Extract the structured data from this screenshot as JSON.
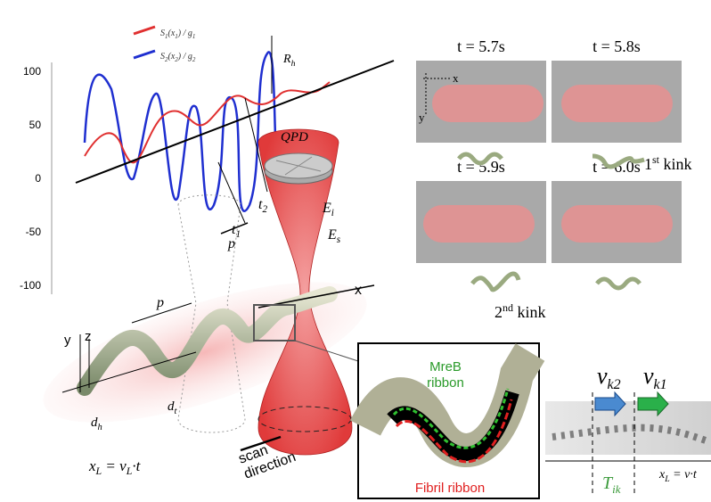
{
  "plot": {
    "legend": [
      {
        "parts": [
          "S",
          "1",
          "(x",
          "1",
          ") / g",
          "1"
        ]
      },
      {
        "parts": [
          "S",
          "2",
          "(x",
          "2",
          ") / g",
          "2"
        ]
      }
    ],
    "yticks": [
      100,
      50,
      0,
      -50,
      -100
    ],
    "rh": [
      "R",
      "h"
    ],
    "p": "p"
  },
  "setup": {
    "qpd": "QPD",
    "t1": [
      "t",
      "1"
    ],
    "t2": [
      "t",
      "2"
    ],
    "ei": [
      "E",
      "i"
    ],
    "es": [
      "E",
      "s"
    ],
    "x": "x",
    "y": "y",
    "z": "z",
    "p": "p",
    "dh": [
      "d",
      "h"
    ],
    "dt": [
      "d",
      "t"
    ],
    "xl": [
      "x",
      "L",
      " = v",
      "L",
      "·t"
    ],
    "scan": [
      "scan",
      "direction"
    ]
  },
  "frames": [
    {
      "title": "t = 5.7s"
    },
    {
      "title": "t = 5.8s"
    },
    {
      "title": "t = 5.9s"
    },
    {
      "title": "t = 6.0s"
    }
  ],
  "frame_axes": [
    "x",
    "y"
  ],
  "kinks": [
    [
      "1",
      "st",
      " kink"
    ],
    [
      "2",
      "nd",
      " kink"
    ]
  ],
  "inset": {
    "mreb": [
      "MreB",
      "ribbon"
    ],
    "fibril": "Fibril ribbon"
  },
  "kymo": {
    "vk2": [
      "v",
      "k2"
    ],
    "vk1": [
      "v",
      "k1"
    ],
    "tik": [
      "T",
      "ik"
    ],
    "xl": [
      "x",
      "L",
      " = v·t"
    ]
  }
}
